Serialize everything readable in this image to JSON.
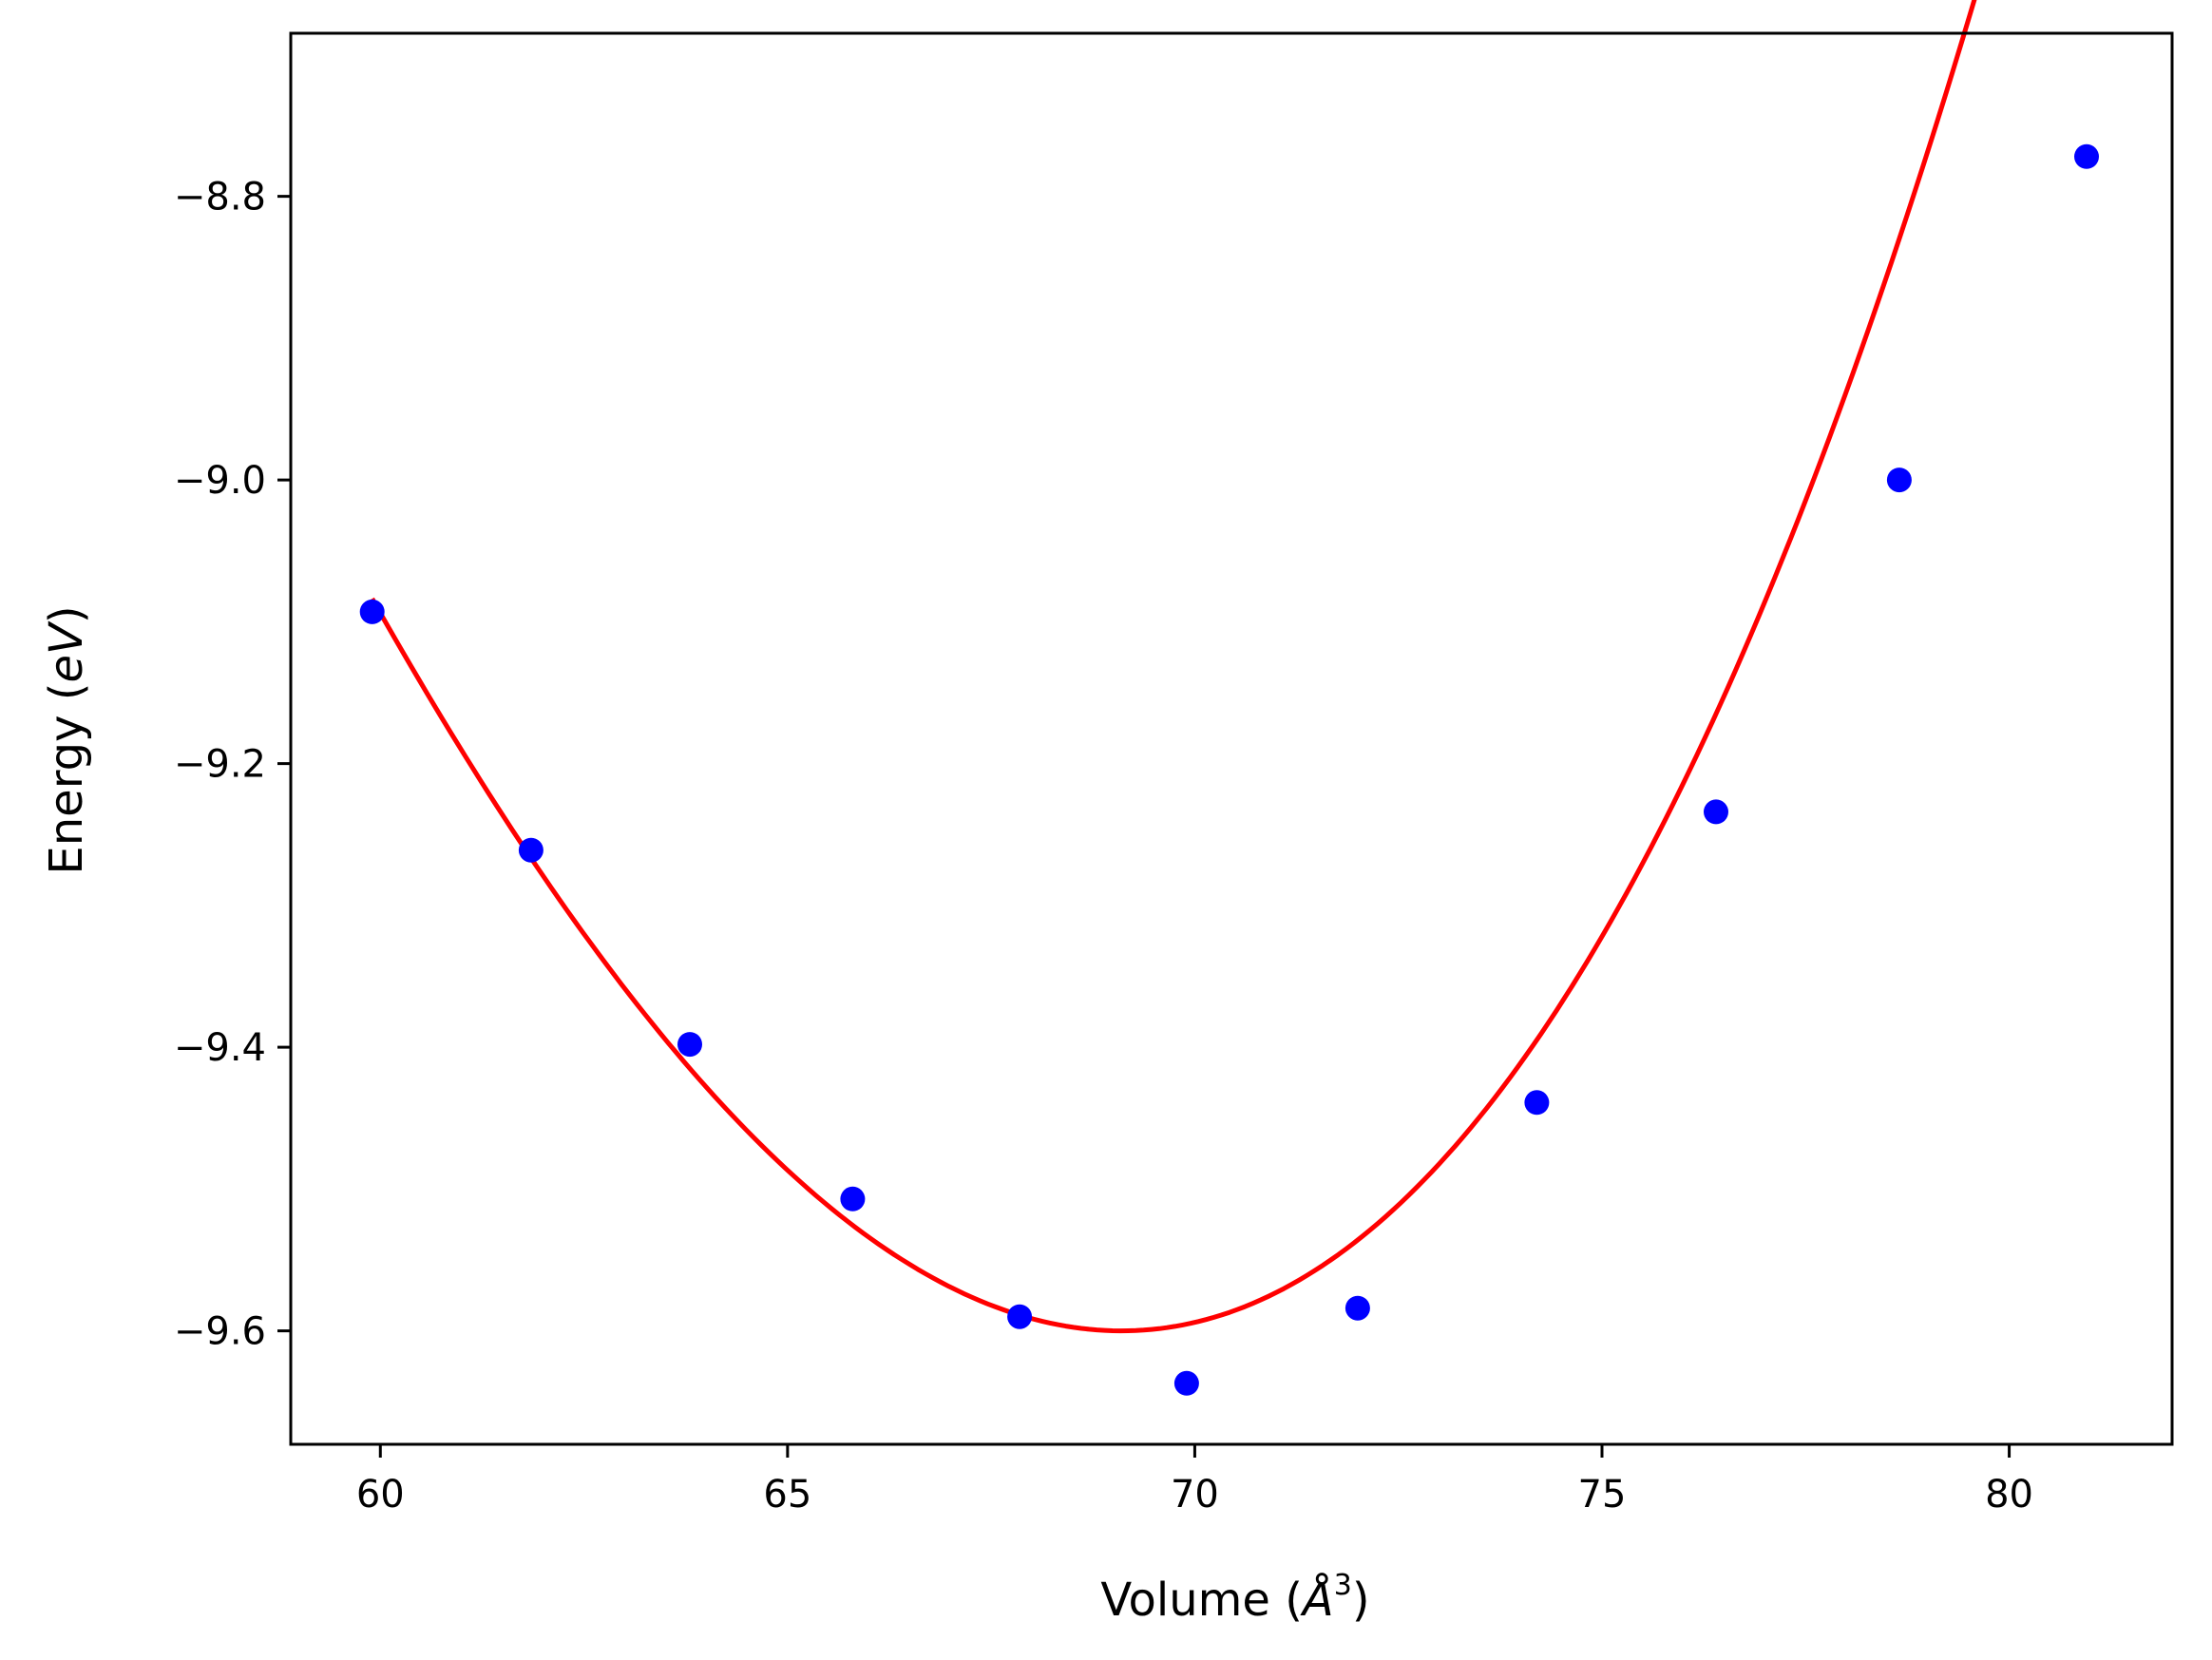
{
  "chart_data": {
    "type": "scatter",
    "title": "",
    "xlabel": {
      "prefix": "Volume (",
      "symbol": "Å",
      "superscript": "3",
      "suffix": ")"
    },
    "ylabel": {
      "prefix": "Energy (",
      "symbol": "eV",
      "suffix": ")"
    },
    "xlim": [
      58.9,
      82.0
    ],
    "ylim": [
      -9.68,
      -8.685
    ],
    "xticks": [
      60,
      65,
      70,
      75,
      80
    ],
    "xtick_labels": [
      "60",
      "65",
      "70",
      "75",
      "80"
    ],
    "yticks": [
      -8.8,
      -9.0,
      -9.2,
      -9.4,
      -9.6
    ],
    "ytick_labels": [
      "−8.8",
      "−9.0",
      "−9.2",
      "−9.4",
      "−9.6"
    ],
    "grid": false,
    "legend": "none",
    "series": [
      {
        "kind": "scatter",
        "color": "#0000ff",
        "points": [
          {
            "x": 59.9,
            "y": -9.093
          },
          {
            "x": 61.85,
            "y": -9.261
          },
          {
            "x": 63.8,
            "y": -9.398
          },
          {
            "x": 65.8,
            "y": -9.507
          },
          {
            "x": 67.85,
            "y": -9.59
          },
          {
            "x": 69.9,
            "y": -9.637
          },
          {
            "x": 72.0,
            "y": -9.584
          },
          {
            "x": 74.2,
            "y": -9.439
          },
          {
            "x": 76.4,
            "y": -9.234
          },
          {
            "x": 78.65,
            "y": -9.0
          },
          {
            "x": 80.95,
            "y": -8.772
          }
        ]
      },
      {
        "kind": "fit-line",
        "color": "#ff0000",
        "x_range": [
          59.9,
          80.95
        ],
        "fit": {
          "v0": 69.1,
          "e0": -9.6,
          "a": 0.00725,
          "b": 0.000125
        }
      }
    ]
  }
}
